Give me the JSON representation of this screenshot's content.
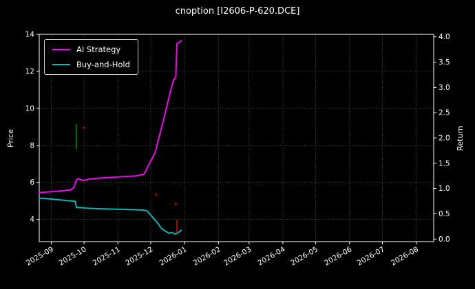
{
  "chart_data": {
    "type": "line",
    "title": "cnoption [I2606-P-620.DCE]",
    "background": "#000000",
    "text_color": "#ffffff",
    "grid_color": "#757575",
    "x_domain": [
      "2025-08-21",
      "2026-08-17"
    ],
    "x_ticks": [
      {
        "date": "2025-09-01",
        "label": "2025-09"
      },
      {
        "date": "2025-10-01",
        "label": "2025-10"
      },
      {
        "date": "2025-11-01",
        "label": "2025-11"
      },
      {
        "date": "2025-12-01",
        "label": "2025-12"
      },
      {
        "date": "2026-01-01",
        "label": "2026-01"
      },
      {
        "date": "2026-02-01",
        "label": "2026-02"
      },
      {
        "date": "2026-03-01",
        "label": "2026-03"
      },
      {
        "date": "2026-04-01",
        "label": "2026-04"
      },
      {
        "date": "2026-05-01",
        "label": "2026-05"
      },
      {
        "date": "2026-06-01",
        "label": "2026-06"
      },
      {
        "date": "2026-07-01",
        "label": "2026-07"
      },
      {
        "date": "2026-08-01",
        "label": "2026-08"
      }
    ],
    "left_axis": {
      "label": "Price",
      "lim": [
        2.8,
        14.0
      ],
      "ticks": [
        {
          "v": 4,
          "label": "4"
        },
        {
          "v": 6,
          "label": "6"
        },
        {
          "v": 8,
          "label": "8"
        },
        {
          "v": 10,
          "label": "10"
        },
        {
          "v": 12,
          "label": "12"
        },
        {
          "v": 14,
          "label": "14"
        }
      ]
    },
    "right_axis": {
      "label": "Return",
      "lim": [
        -0.05,
        4.05
      ],
      "ticks": [
        {
          "v": 0.0,
          "label": "0.0"
        },
        {
          "v": 0.5,
          "label": "0.5"
        },
        {
          "v": 1.0,
          "label": "1.0"
        },
        {
          "v": 1.5,
          "label": "1.5"
        },
        {
          "v": 2.0,
          "label": "2.0"
        },
        {
          "v": 2.5,
          "label": "2.5"
        },
        {
          "v": 3.0,
          "label": "3.0"
        },
        {
          "v": 3.5,
          "label": "3.5"
        },
        {
          "v": 4.0,
          "label": "4.0"
        }
      ]
    },
    "series": [
      {
        "name": "AI Strategy",
        "color": "#ff00ff",
        "points": [
          [
            "2025-08-21",
            5.45
          ],
          [
            "2025-09-02",
            5.5
          ],
          [
            "2025-09-12",
            5.55
          ],
          [
            "2025-09-19",
            5.6
          ],
          [
            "2025-09-22",
            5.75
          ],
          [
            "2025-09-24",
            6.15
          ],
          [
            "2025-09-26",
            6.2
          ],
          [
            "2025-09-30",
            6.1
          ],
          [
            "2025-10-08",
            6.2
          ],
          [
            "2025-10-20",
            6.25
          ],
          [
            "2025-11-03",
            6.3
          ],
          [
            "2025-11-17",
            6.35
          ],
          [
            "2025-11-25",
            6.45
          ],
          [
            "2025-12-05",
            7.6
          ],
          [
            "2025-12-12",
            9.2
          ],
          [
            "2025-12-19",
            10.9
          ],
          [
            "2025-12-22",
            11.55
          ],
          [
            "2025-12-24",
            11.65
          ],
          [
            "2025-12-25",
            13.5
          ],
          [
            "2025-12-29",
            13.65
          ]
        ]
      },
      {
        "name": "Buy-and-Hold",
        "color": "#00bfbf",
        "points": [
          [
            "2025-08-21",
            5.15
          ],
          [
            "2025-09-01",
            5.1
          ],
          [
            "2025-09-10",
            5.05
          ],
          [
            "2025-09-19",
            5.0
          ],
          [
            "2025-09-23",
            4.98
          ],
          [
            "2025-09-24",
            4.65
          ],
          [
            "2025-10-06",
            4.6
          ],
          [
            "2025-10-20",
            4.57
          ],
          [
            "2025-11-03",
            4.55
          ],
          [
            "2025-11-17",
            4.52
          ],
          [
            "2025-11-25",
            4.5
          ],
          [
            "2025-11-28",
            4.45
          ],
          [
            "2025-12-03",
            4.1
          ],
          [
            "2025-12-08",
            3.75
          ],
          [
            "2025-12-11",
            3.5
          ],
          [
            "2025-12-15",
            3.35
          ],
          [
            "2025-12-18",
            3.25
          ],
          [
            "2025-12-20",
            3.3
          ],
          [
            "2025-12-23",
            3.22
          ],
          [
            "2025-12-26",
            3.28
          ],
          [
            "2025-12-29",
            3.42
          ]
        ]
      }
    ],
    "annotations": [
      {
        "type": "vline",
        "date": "2025-09-24",
        "from": 7.8,
        "to": 9.15,
        "color": "#00a000"
      },
      {
        "type": "dot",
        "date": "2025-10-01",
        "price": 8.95,
        "color": "#d00000"
      },
      {
        "type": "dot",
        "date": "2025-12-06",
        "price": 5.35,
        "color": "#d00000"
      },
      {
        "type": "dot",
        "date": "2025-12-24",
        "price": 4.85,
        "color": "#d00000"
      },
      {
        "type": "vline",
        "date": "2025-12-25",
        "from": 3.3,
        "to": 3.95,
        "color": "#ff0000"
      }
    ],
    "legend": {
      "entries": [
        "AI Strategy",
        "Buy-and-Hold"
      ]
    }
  }
}
